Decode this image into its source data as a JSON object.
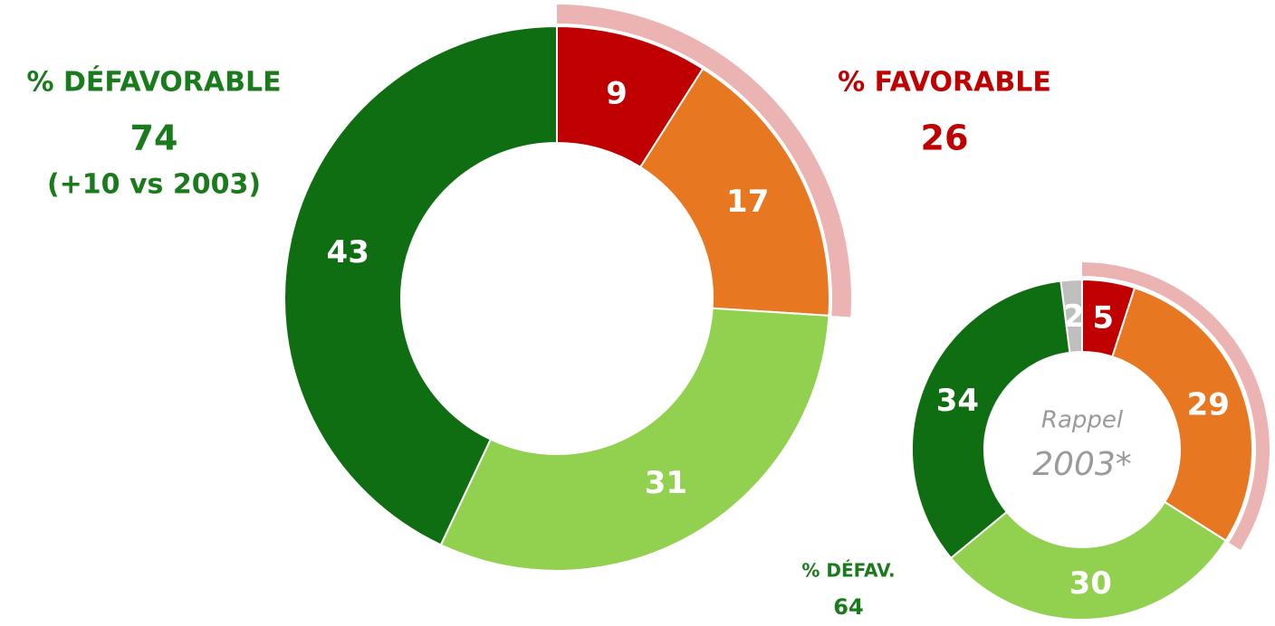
{
  "chart_data": [
    {
      "type": "donut",
      "values": [
        9,
        17,
        31,
        43
      ],
      "colors": [
        "#c00000",
        "#e87722",
        "#92d050",
        "#0f6e12"
      ],
      "highlight_color": "#ecb3b3",
      "favorable_label": "% FAVORABLE",
      "favorable_total": 26,
      "unfavorable_label": "% DÉFAVORABLE",
      "unfavorable_total": 74,
      "comparison": "(+10 vs 2003)"
    },
    {
      "type": "donut",
      "values": [
        5,
        29,
        30,
        34,
        2
      ],
      "colors": [
        "#c00000",
        "#e87722",
        "#92d050",
        "#0f6e12",
        "#bfbfbf"
      ],
      "highlight_color": "#ecb3b3",
      "center_labels": [
        "Rappel",
        "2003*"
      ],
      "unfavorable_label": "% DÉFAV.",
      "unfavorable_total": 64
    }
  ]
}
